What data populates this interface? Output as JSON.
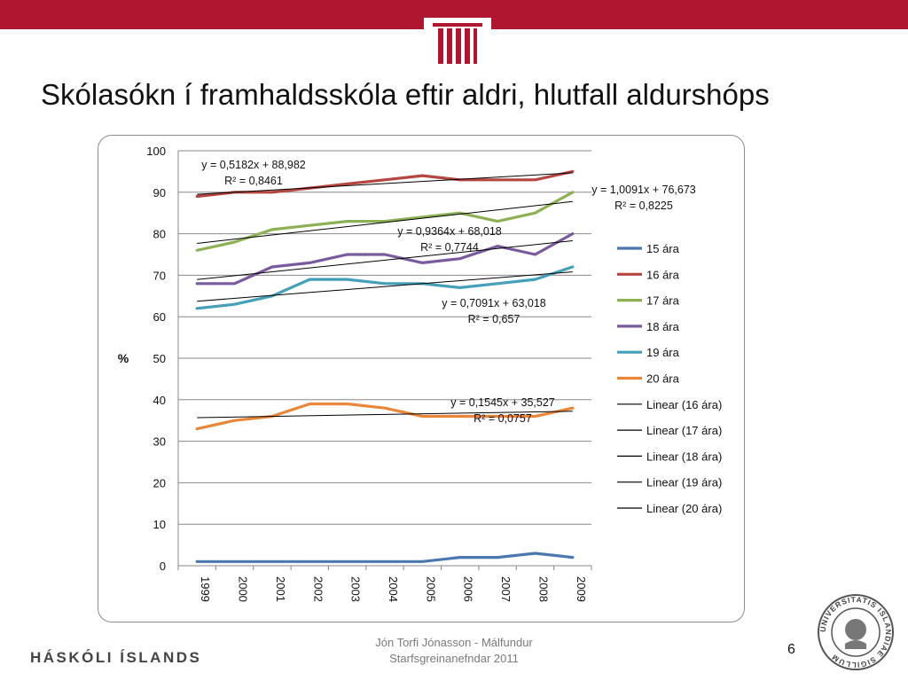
{
  "slide": {
    "title": "Skólasókn í framhaldsskóla eftir aldri, hlutfall aldurshóps",
    "brand": "HÁSKÓLI ÍSLANDS",
    "footer_line1": "Jón Torfi Jónasson - Málfundur",
    "footer_line2": "Starfsgreinanefndar 2011",
    "page_number": "6",
    "seal_text": "UNIVERSITATIS ISLANDIAE SIGILLUM",
    "accent_color": "#b0162f"
  },
  "chart_data": {
    "type": "line",
    "title": "",
    "xlabel": "",
    "ylabel": "%",
    "x": [
      "1999",
      "2000",
      "2001",
      "2002",
      "2003",
      "2004",
      "2005",
      "2006",
      "2007",
      "2008",
      "2009"
    ],
    "ylim": [
      0,
      100
    ],
    "yticks": [
      0,
      10,
      20,
      30,
      40,
      50,
      60,
      70,
      80,
      90,
      100
    ],
    "grid": true,
    "legend_position": "right",
    "series": [
      {
        "name": "15 ára",
        "color": "#4a77b0",
        "values": [
          1,
          1,
          1,
          1,
          1,
          1,
          1,
          2,
          2,
          3,
          2
        ]
      },
      {
        "name": "16 ára",
        "color": "#b5463f",
        "values": [
          89,
          90,
          90,
          91,
          92,
          93,
          94,
          93,
          93,
          93,
          95
        ]
      },
      {
        "name": "17 ára",
        "color": "#8db055",
        "values": [
          76,
          78,
          81,
          82,
          83,
          83,
          84,
          85,
          83,
          85,
          90
        ]
      },
      {
        "name": "18 ára",
        "color": "#7a5a9e",
        "values": [
          68,
          68,
          72,
          73,
          75,
          75,
          73,
          74,
          77,
          75,
          80
        ]
      },
      {
        "name": "19 ára",
        "color": "#43a0b8",
        "values": [
          62,
          63,
          65,
          69,
          69,
          68,
          68,
          67,
          68,
          69,
          72
        ]
      },
      {
        "name": "20 ára",
        "color": "#e8873a",
        "values": [
          33,
          35,
          36,
          39,
          39,
          38,
          36,
          36,
          36,
          36,
          38
        ]
      }
    ],
    "trendlines": [
      {
        "name": "Linear (16 ára)",
        "slope": 0.5182,
        "intercept": 88.982,
        "equation": "y = 0,5182x + 88,982",
        "r2": "R² = 0,8461"
      },
      {
        "name": "Linear (17 ára)",
        "slope": 1.0091,
        "intercept": 76.673,
        "equation": "y = 1,0091x + 76,673",
        "r2": "R² = 0,8225"
      },
      {
        "name": "Linear (18 ára)",
        "slope": 0.9364,
        "intercept": 68.018,
        "equation": "y = 0,9364x + 68,018",
        "r2": "R² = 0,7744"
      },
      {
        "name": "Linear (19 ára)",
        "slope": 0.7091,
        "intercept": 63.018,
        "equation": "y = 0,7091x + 63,018",
        "r2": "R² = 0,657"
      },
      {
        "name": "Linear (20 ára)",
        "slope": 0.1545,
        "intercept": 35.527,
        "equation": "y = 0,1545x + 35,527",
        "r2": "R² = 0,0757"
      }
    ]
  }
}
